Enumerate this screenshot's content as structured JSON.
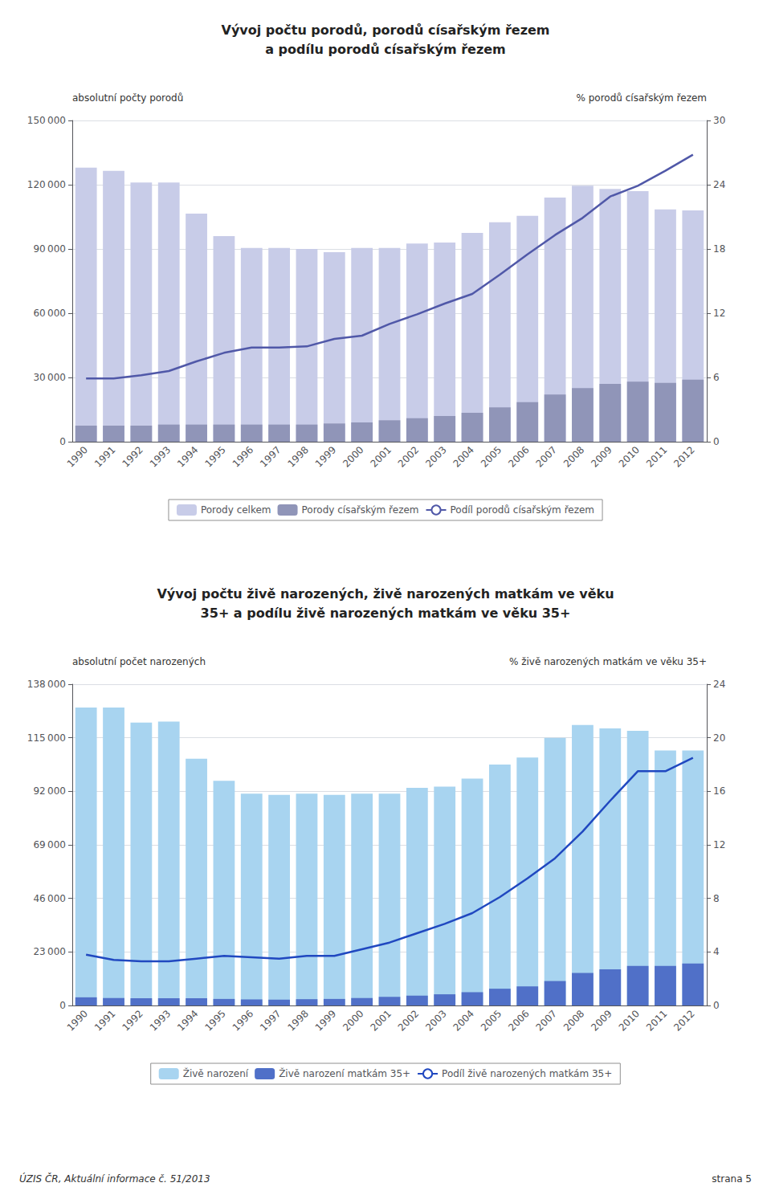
{
  "chart_data": [
    {
      "type": "bar",
      "title": "Vývoj počtu porodů, porodů císařským řezem\na podílu porodů císařským řezem",
      "ylabel": "absolutní počty porodů",
      "y2label": "% porodů císařským řezem",
      "categories": [
        1990,
        1991,
        1992,
        1993,
        1994,
        1995,
        1996,
        1997,
        1998,
        1999,
        2000,
        2001,
        2002,
        2003,
        2004,
        2005,
        2006,
        2007,
        2008,
        2009,
        2010,
        2011,
        2012
      ],
      "series": [
        {
          "name": "Porody celkem",
          "type": "bar",
          "color": "#c8cce8",
          "values": [
            128000,
            126500,
            121000,
            121000,
            106500,
            96000,
            90500,
            90500,
            90000,
            88500,
            90500,
            90500,
            92500,
            93000,
            97500,
            102500,
            105500,
            114000,
            119500,
            118000,
            117000,
            108500,
            108000
          ]
        },
        {
          "name": "Porody císařským řezem",
          "type": "bar",
          "color": "#9095b8",
          "values": [
            7500,
            7500,
            7500,
            8000,
            8000,
            8000,
            8000,
            8000,
            8000,
            8500,
            9000,
            10000,
            11000,
            12000,
            13500,
            16000,
            18500,
            22000,
            25000,
            27000,
            28000,
            27500,
            29000
          ]
        },
        {
          "name": "Podíl porodů císařským řezem",
          "type": "line",
          "axis": "y2",
          "color": "#5058a8",
          "values": [
            5.9,
            5.9,
            6.2,
            6.6,
            7.5,
            8.3,
            8.8,
            8.8,
            8.9,
            9.6,
            9.9,
            11.0,
            11.9,
            12.9,
            13.8,
            15.6,
            17.5,
            19.3,
            20.9,
            22.9,
            23.9,
            25.3,
            26.8
          ]
        }
      ],
      "ylim": [
        0,
        150000
      ],
      "yticks": [
        0,
        {
          "value": 30000,
          "label": "30 000"
        },
        {
          "value": 60000,
          "label": "60 000"
        },
        {
          "value": 90000,
          "label": "90 000"
        },
        {
          "value": 120000,
          "label": "120 000"
        },
        {
          "value": 150000,
          "label": "150 000"
        }
      ],
      "y2lim": [
        0,
        30
      ],
      "y2ticks": [
        0,
        6,
        12,
        18,
        24,
        30
      ],
      "grid": true,
      "legend": "bottom"
    },
    {
      "type": "bar",
      "title": "Vývoj počtu živě narozených, živě narozených matkám ve věku\n35+ a podílu živě narozených matkám ve věku 35+",
      "ylabel": "absolutní počet narozených",
      "y2label": "% živě narozených matkám ve věku 35+",
      "categories": [
        1990,
        1991,
        1992,
        1993,
        1994,
        1995,
        1996,
        1997,
        1998,
        1999,
        2000,
        2001,
        2002,
        2003,
        2004,
        2005,
        2006,
        2007,
        2008,
        2009,
        2010,
        2011,
        2012
      ],
      "series": [
        {
          "name": "Živě narození",
          "type": "bar",
          "color": "#a8d4f0",
          "values": [
            128000,
            128000,
            121500,
            122000,
            106000,
            96500,
            91000,
            90500,
            91000,
            90500,
            91000,
            91000,
            93500,
            94000,
            97500,
            103500,
            106500,
            115000,
            120500,
            119000,
            118000,
            109500,
            109500
          ]
        },
        {
          "name": "Živě narození matkám 35+",
          "type": "bar",
          "color": "#5070c8",
          "values": [
            3500,
            3200,
            3100,
            3100,
            3100,
            2800,
            2600,
            2500,
            2700,
            2800,
            3200,
            3700,
            4200,
            4800,
            5700,
            7200,
            8200,
            10500,
            14000,
            15500,
            17000,
            17000,
            18000
          ]
        },
        {
          "name": "Podíl živě narozených matkám 35+",
          "type": "line",
          "axis": "y2",
          "color": "#2048c0",
          "values": [
            3.8,
            3.4,
            3.3,
            3.3,
            3.5,
            3.7,
            3.6,
            3.5,
            3.7,
            3.7,
            4.2,
            4.7,
            5.4,
            6.1,
            6.9,
            8.1,
            9.5,
            11.0,
            13.0,
            15.3,
            17.5,
            17.5,
            18.5
          ]
        }
      ],
      "ylim": [
        0,
        138000
      ],
      "yticks": [
        0,
        {
          "value": 23000,
          "label": "23 000"
        },
        {
          "value": 46000,
          "label": "46 000"
        },
        {
          "value": 69000,
          "label": "69 000"
        },
        {
          "value": 92000,
          "label": "92 000"
        },
        {
          "value": 115000,
          "label": "115 000"
        },
        {
          "value": 138000,
          "label": "138 000"
        }
      ],
      "y2lim": [
        0,
        24
      ],
      "y2ticks": [
        0,
        4,
        8,
        12,
        16,
        20,
        24
      ],
      "grid": true,
      "legend": "bottom",
      "annotations": [
        "ÚZIS ČR, Aktuální informace č. 51/2013",
        "strana 5"
      ]
    }
  ]
}
